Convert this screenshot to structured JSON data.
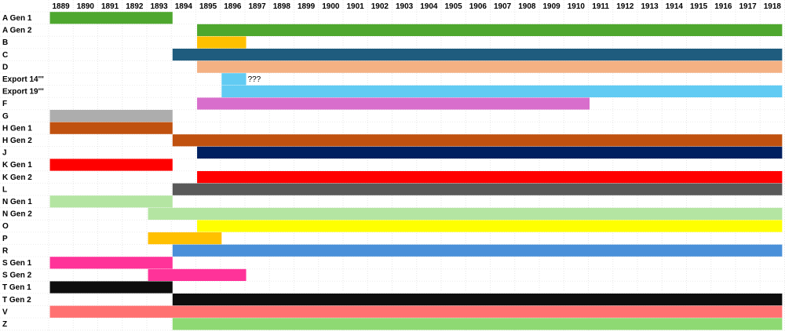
{
  "chart_data": {
    "type": "bar",
    "subtype": "gantt",
    "title": "",
    "xlabel": "",
    "ylabel": "",
    "x_ticks": [
      1889,
      1890,
      1891,
      1892,
      1893,
      1894,
      1895,
      1896,
      1897,
      1898,
      1899,
      1900,
      1901,
      1902,
      1903,
      1904,
      1905,
      1906,
      1907,
      1908,
      1909,
      1910,
      1911,
      1912,
      1913,
      1914,
      1915,
      1916,
      1917,
      1918
    ],
    "xlim": [
      1888.55,
      1918.4
    ],
    "grid": true,
    "legend": "none",
    "rows": [
      {
        "label": "A Gen 1",
        "bars": [
          {
            "start": 1888.55,
            "end": 1893.55,
            "color": "#4ea72e"
          }
        ]
      },
      {
        "label": "A Gen 2",
        "bars": [
          {
            "start": 1894.55,
            "end": 1918.4,
            "color": "#4ea72e"
          }
        ]
      },
      {
        "label": "B",
        "bars": [
          {
            "start": 1894.55,
            "end": 1896.55,
            "color": "#ffc000"
          }
        ]
      },
      {
        "label": "C",
        "bars": [
          {
            "start": 1893.55,
            "end": 1918.4,
            "color": "#1f5c7e"
          }
        ]
      },
      {
        "label": "D",
        "bars": [
          {
            "start": 1894.55,
            "end": 1918.4,
            "color": "#f4b183"
          }
        ]
      },
      {
        "label": "Export 14'''",
        "bars": [
          {
            "start": 1895.55,
            "end": 1896.55,
            "color": "#61cbf3"
          }
        ]
      },
      {
        "label": "Export 19'''",
        "bars": [
          {
            "start": 1895.55,
            "end": 1918.4,
            "color": "#61cbf3"
          }
        ]
      },
      {
        "label": "F",
        "bars": [
          {
            "start": 1894.55,
            "end": 1910.55,
            "color": "#d86ecc"
          }
        ]
      },
      {
        "label": "G",
        "bars": [
          {
            "start": 1888.55,
            "end": 1893.55,
            "color": "#adadad"
          }
        ]
      },
      {
        "label": "H Gen 1",
        "bars": [
          {
            "start": 1888.55,
            "end": 1893.55,
            "color": "#c0510f"
          }
        ]
      },
      {
        "label": "H Gen 2",
        "bars": [
          {
            "start": 1893.55,
            "end": 1918.4,
            "color": "#c0510f"
          }
        ]
      },
      {
        "label": "J",
        "bars": [
          {
            "start": 1894.55,
            "end": 1918.4,
            "color": "#002060"
          }
        ]
      },
      {
        "label": "K Gen 1",
        "bars": [
          {
            "start": 1888.55,
            "end": 1893.55,
            "color": "#ff0000"
          }
        ]
      },
      {
        "label": "K Gen 2",
        "bars": [
          {
            "start": 1894.55,
            "end": 1918.4,
            "color": "#ff0000"
          }
        ]
      },
      {
        "label": "L",
        "bars": [
          {
            "start": 1893.55,
            "end": 1918.4,
            "color": "#595959"
          }
        ]
      },
      {
        "label": "N Gen 1",
        "bars": [
          {
            "start": 1888.55,
            "end": 1893.55,
            "color": "#b4e5a2"
          }
        ]
      },
      {
        "label": "N Gen 2",
        "bars": [
          {
            "start": 1892.55,
            "end": 1918.4,
            "color": "#b4e5a2"
          }
        ]
      },
      {
        "label": "O",
        "bars": [
          {
            "start": 1894.55,
            "end": 1918.4,
            "color": "#ffff00"
          }
        ]
      },
      {
        "label": "P",
        "bars": [
          {
            "start": 1892.55,
            "end": 1895.55,
            "color": "#ffc000"
          }
        ]
      },
      {
        "label": "R",
        "bars": [
          {
            "start": 1893.55,
            "end": 1918.4,
            "color": "#4a90d9"
          }
        ]
      },
      {
        "label": "S Gen 1",
        "bars": [
          {
            "start": 1888.55,
            "end": 1893.55,
            "color": "#ff3399"
          }
        ]
      },
      {
        "label": "S Gen 2",
        "bars": [
          {
            "start": 1892.55,
            "end": 1896.55,
            "color": "#ff3399"
          }
        ]
      },
      {
        "label": "T Gen 1",
        "bars": [
          {
            "start": 1888.55,
            "end": 1893.55,
            "color": "#0d0d0d"
          }
        ]
      },
      {
        "label": "T Gen 2",
        "bars": [
          {
            "start": 1893.55,
            "end": 1918.4,
            "color": "#0d0d0d"
          }
        ]
      },
      {
        "label": "V",
        "bars": [
          {
            "start": 1888.55,
            "end": 1918.4,
            "color": "#ff7171"
          }
        ]
      },
      {
        "label": "Z",
        "bars": [
          {
            "start": 1893.55,
            "end": 1918.4,
            "color": "#8ed973"
          }
        ]
      }
    ],
    "annotations": [
      {
        "text": "???",
        "row": 5,
        "x": 1896.55
      }
    ]
  }
}
